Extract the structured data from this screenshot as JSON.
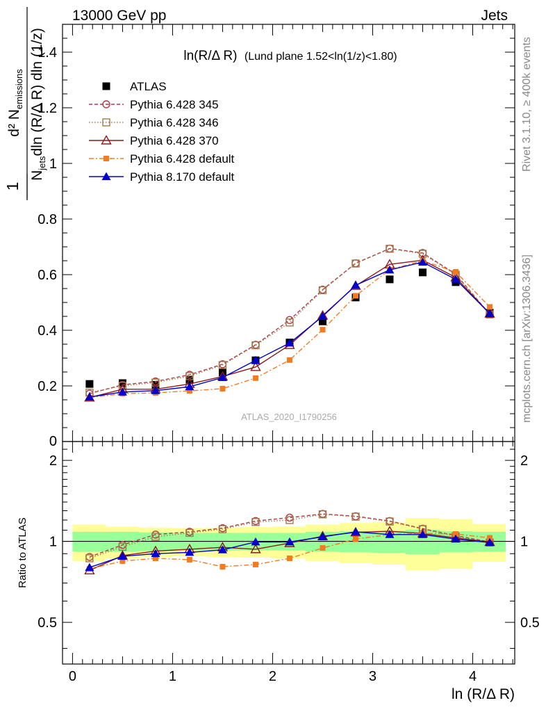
{
  "header": {
    "left": "13000 GeV pp",
    "right": "Jets"
  },
  "side_labels": {
    "rivet": "Rivet 3.1.10, ≥ 400k events",
    "mcplots": "mcplots.cern.ch [arXiv:1306.3436]"
  },
  "watermark": "ATLAS_2020_I1790256",
  "chart_data": [
    {
      "type": "line",
      "title_main": "ln(R/Δ R)",
      "title_detail": "(Lund plane 1.52<ln(1/z)<1.80)",
      "ylabel": {
        "numerator": "d² N",
        "numerator_sub": "emissions",
        "denominator_pre": "N",
        "denominator_sub": "jets",
        "denominator_post": "dln (R/Δ R) dln (1/z)",
        "prefactor": "1"
      },
      "xlim": [
        -0.1,
        4.42
      ],
      "ylim": [
        0.0,
        1.5
      ],
      "yticks": [
        0.2,
        0.4,
        0.6,
        0.8,
        1.0,
        1.2,
        1.4
      ],
      "ytick_labels": [
        "0.2",
        "0.4",
        "0.6",
        "0.8",
        "1",
        "1.2",
        "1.4"
      ],
      "bottom_tick_label": "0",
      "legend_position": "top-left",
      "x": [
        0.17,
        0.5,
        0.83,
        1.17,
        1.5,
        1.83,
        2.17,
        2.5,
        2.83,
        3.17,
        3.5,
        3.83,
        4.17
      ],
      "series": [
        {
          "name": "ATLAS",
          "color": "#000000",
          "marker": "filled-square",
          "values": [
            0.207,
            0.21,
            0.204,
            0.222,
            0.248,
            0.292,
            0.356,
            0.432,
            0.518,
            0.583,
            0.608,
            0.573,
            0.463
          ]
        },
        {
          "name": "Pythia 6.428 345",
          "color": "#b03a48",
          "marker": "open-circle",
          "dash": "5,3",
          "values": [
            0.172,
            0.204,
            0.216,
            0.24,
            0.278,
            0.348,
            0.437,
            0.546,
            0.641,
            0.694,
            0.678,
            0.602,
            0.458
          ]
        },
        {
          "name": "Pythia 6.428 346",
          "color": "#a07a48",
          "marker": "open-square",
          "dash": "1.5,2.5",
          "values": [
            0.176,
            0.2,
            0.212,
            0.235,
            0.275,
            0.346,
            0.428,
            0.544,
            0.64,
            0.693,
            0.675,
            0.6,
            0.457
          ]
        },
        {
          "name": "Pythia 6.428 370",
          "color": "#8b1a1a",
          "marker": "open-triangle",
          "dash": "",
          "values": [
            0.158,
            0.188,
            0.188,
            0.207,
            0.234,
            0.268,
            0.347,
            0.453,
            0.56,
            0.637,
            0.652,
            0.59,
            0.46
          ]
        },
        {
          "name": "Pythia 6.428 default",
          "color": "#f47b20",
          "marker": "filled-small-square",
          "dash": "7,3,2,3",
          "values": [
            0.158,
            0.172,
            0.175,
            0.182,
            0.19,
            0.228,
            0.293,
            0.402,
            0.524,
            0.618,
            0.65,
            0.61,
            0.484
          ]
        },
        {
          "name": "Pythia 8.170 default",
          "color": "#0000cc",
          "marker": "filled-triangle",
          "dash": "",
          "values": [
            0.16,
            0.178,
            0.183,
            0.197,
            0.23,
            0.292,
            0.354,
            0.45,
            0.562,
            0.617,
            0.645,
            0.583,
            0.46
          ]
        }
      ]
    },
    {
      "type": "line",
      "subtype": "ratio",
      "ylabel": "Ratio to ATLAS",
      "xlabel": "ln (R/Δ R)",
      "xlim": [
        -0.1,
        4.42
      ],
      "ylim": [
        0.35,
        2.35
      ],
      "yticks": [
        0.5,
        1.0,
        2.0
      ],
      "ytick_labels": [
        "0.5",
        "1",
        "2"
      ],
      "xticks": [
        0,
        1,
        2,
        3,
        4
      ],
      "xtick_labels": [
        "0",
        "1",
        "2",
        "3",
        "4"
      ],
      "reference_line": 1.0,
      "x": [
        0.17,
        0.5,
        0.83,
        1.17,
        1.5,
        1.83,
        2.17,
        2.5,
        2.83,
        3.17,
        3.5,
        3.83,
        4.17
      ],
      "bin_edges": [
        0.0,
        0.33,
        0.67,
        1.0,
        1.33,
        1.67,
        2.0,
        2.33,
        2.67,
        3.0,
        3.33,
        3.67,
        4.0,
        4.33
      ],
      "band_inner": {
        "color": "#99ff99",
        "lo": [
          0.915,
          0.915,
          0.92,
          0.925,
          0.925,
          0.925,
          0.925,
          0.915,
          0.91,
          0.905,
          0.895,
          0.91,
          0.915
        ],
        "hi": [
          1.085,
          1.085,
          1.08,
          1.075,
          1.075,
          1.075,
          1.075,
          1.085,
          1.09,
          1.095,
          1.105,
          1.09,
          1.085
        ]
      },
      "band_outer": {
        "color": "#ffff99",
        "lo": [
          0.845,
          0.865,
          0.875,
          0.88,
          0.875,
          0.87,
          0.865,
          0.845,
          0.83,
          0.82,
          0.78,
          0.79,
          0.84
        ],
        "hi": [
          1.155,
          1.135,
          1.125,
          1.12,
          1.125,
          1.13,
          1.135,
          1.155,
          1.17,
          1.18,
          1.22,
          1.21,
          1.16
        ]
      },
      "series": [
        {
          "name": "Pythia 6.428 345",
          "color": "#b03a48",
          "marker": "open-circle",
          "dash": "5,3",
          "values": [
            0.875,
            0.97,
            1.06,
            1.085,
            1.12,
            1.19,
            1.225,
            1.265,
            1.24,
            1.19,
            1.115,
            1.05,
            0.995
          ]
        },
        {
          "name": "Pythia 6.428 346",
          "color": "#a07a48",
          "marker": "open-square",
          "dash": "1.5,2.5",
          "values": [
            0.865,
            0.955,
            1.04,
            1.075,
            1.11,
            1.18,
            1.2,
            1.26,
            1.235,
            1.185,
            1.11,
            1.045,
            0.99
          ]
        },
        {
          "name": "Pythia 6.428 370",
          "color": "#8b1a1a",
          "marker": "open-triangle",
          "dash": "",
          "values": [
            0.78,
            0.885,
            0.92,
            0.935,
            0.95,
            0.935,
            0.985,
            1.045,
            1.08,
            1.09,
            1.07,
            1.03,
            0.995
          ]
        },
        {
          "name": "Pythia 6.428 default",
          "color": "#f47b20",
          "marker": "filled-small-square",
          "dash": "7,3,2,3",
          "values": [
            0.79,
            0.845,
            0.865,
            0.855,
            0.805,
            0.82,
            0.865,
            0.945,
            1.02,
            1.06,
            1.07,
            1.065,
            1.03
          ]
        },
        {
          "name": "Pythia 8.170 default",
          "color": "#0000cc",
          "marker": "filled-triangle",
          "dash": "",
          "values": [
            0.8,
            0.88,
            0.9,
            0.91,
            0.93,
            0.995,
            0.995,
            1.04,
            1.085,
            1.06,
            1.06,
            1.02,
            0.99
          ]
        }
      ]
    }
  ]
}
